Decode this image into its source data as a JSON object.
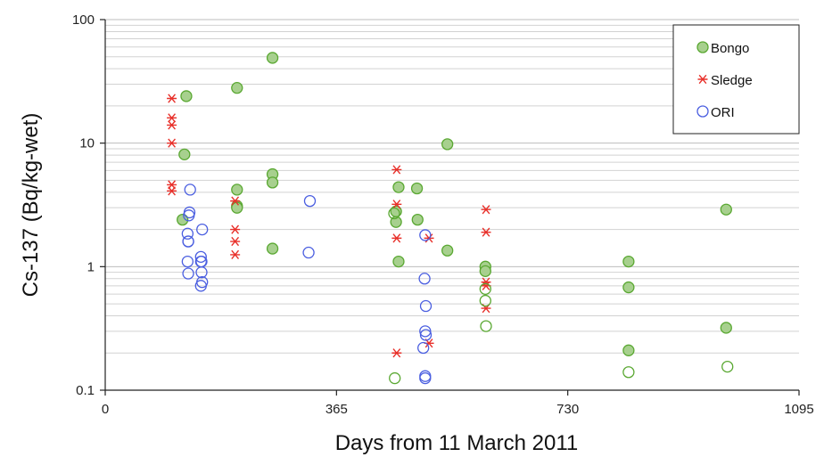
{
  "chart_data": {
    "type": "scatter",
    "xlabel": "Days from 11 March 2011",
    "ylabel": "Cs-137 (Bq/kg-wet)",
    "x_ticks": [
      0,
      365,
      730,
      1095
    ],
    "y_ticks": [
      0.1,
      1,
      10,
      100
    ],
    "xlim": [
      0,
      1095
    ],
    "ylim": [
      0.1,
      100
    ],
    "y_scale": "log",
    "grid": "horizontal minor lines",
    "legend_position": "top-right",
    "series": [
      {
        "name": "Bongo",
        "marker": "circle-filled",
        "color": "#5aa832",
        "points": [
          [
            128,
            24
          ],
          [
            122,
            2.4
          ],
          [
            125,
            8.1
          ],
          [
            208,
            28
          ],
          [
            208,
            4.2
          ],
          [
            208,
            3.1
          ],
          [
            208,
            3.0
          ],
          [
            264,
            49
          ],
          [
            264,
            5.6
          ],
          [
            264,
            4.8
          ],
          [
            264,
            1.4
          ],
          [
            459,
            2.8
          ],
          [
            459,
            2.3
          ],
          [
            463,
            4.4
          ],
          [
            463,
            1.1
          ],
          [
            492,
            4.3
          ],
          [
            493,
            2.4
          ],
          [
            540,
            9.8
          ],
          [
            540,
            1.35
          ],
          [
            600,
            1.0
          ],
          [
            600,
            0.92
          ],
          [
            826,
            1.1
          ],
          [
            826,
            0.68
          ],
          [
            826,
            0.21
          ],
          [
            980,
            2.9
          ],
          [
            980,
            0.32
          ]
        ]
      },
      {
        "name": "Sledge",
        "marker": "asterisk",
        "color": "#e8302a",
        "points": [
          [
            105,
            23
          ],
          [
            105,
            16
          ],
          [
            105,
            14
          ],
          [
            105,
            10
          ],
          [
            105,
            4.6
          ],
          [
            105,
            4.1
          ],
          [
            205,
            3.4
          ],
          [
            205,
            2.0
          ],
          [
            205,
            1.6
          ],
          [
            205,
            1.25
          ],
          [
            460,
            6.1
          ],
          [
            460,
            3.2
          ],
          [
            460,
            1.7
          ],
          [
            460,
            0.2
          ],
          [
            511,
            1.7
          ],
          [
            511,
            0.24
          ],
          [
            601,
            2.9
          ],
          [
            601,
            1.9
          ],
          [
            601,
            0.75
          ],
          [
            601,
            0.7
          ],
          [
            601,
            0.46
          ]
        ]
      },
      {
        "name": "ORI",
        "marker": "circle-open",
        "color": "#4a5ee0",
        "points": [
          [
            134,
            4.2
          ],
          [
            133,
            2.75
          ],
          [
            132,
            2.6
          ],
          [
            130,
            1.85
          ],
          [
            131,
            1.6
          ],
          [
            131,
            1.6
          ],
          [
            130,
            1.1
          ],
          [
            131,
            0.88
          ],
          [
            153,
            2.0
          ],
          [
            151,
            1.2
          ],
          [
            151,
            1.1
          ],
          [
            152,
            1.1
          ],
          [
            152,
            0.9
          ],
          [
            153,
            0.75
          ],
          [
            151,
            0.7
          ],
          [
            323,
            3.4
          ],
          [
            321,
            1.3
          ],
          [
            505,
            1.8
          ],
          [
            504,
            0.8
          ],
          [
            506,
            0.48
          ],
          [
            505,
            0.3
          ],
          [
            506,
            0.28
          ],
          [
            502,
            0.22
          ],
          [
            505,
            0.13
          ],
          [
            505,
            0.125
          ]
        ]
      },
      {
        "name": "",
        "marker": "circle-open",
        "color": "#5aa832",
        "points": [
          [
            456,
            2.7
          ],
          [
            457,
            0.125
          ],
          [
            600,
            0.66
          ],
          [
            600,
            0.53
          ],
          [
            601,
            0.33
          ],
          [
            826,
            0.14
          ],
          [
            982,
            0.155
          ]
        ]
      }
    ]
  }
}
